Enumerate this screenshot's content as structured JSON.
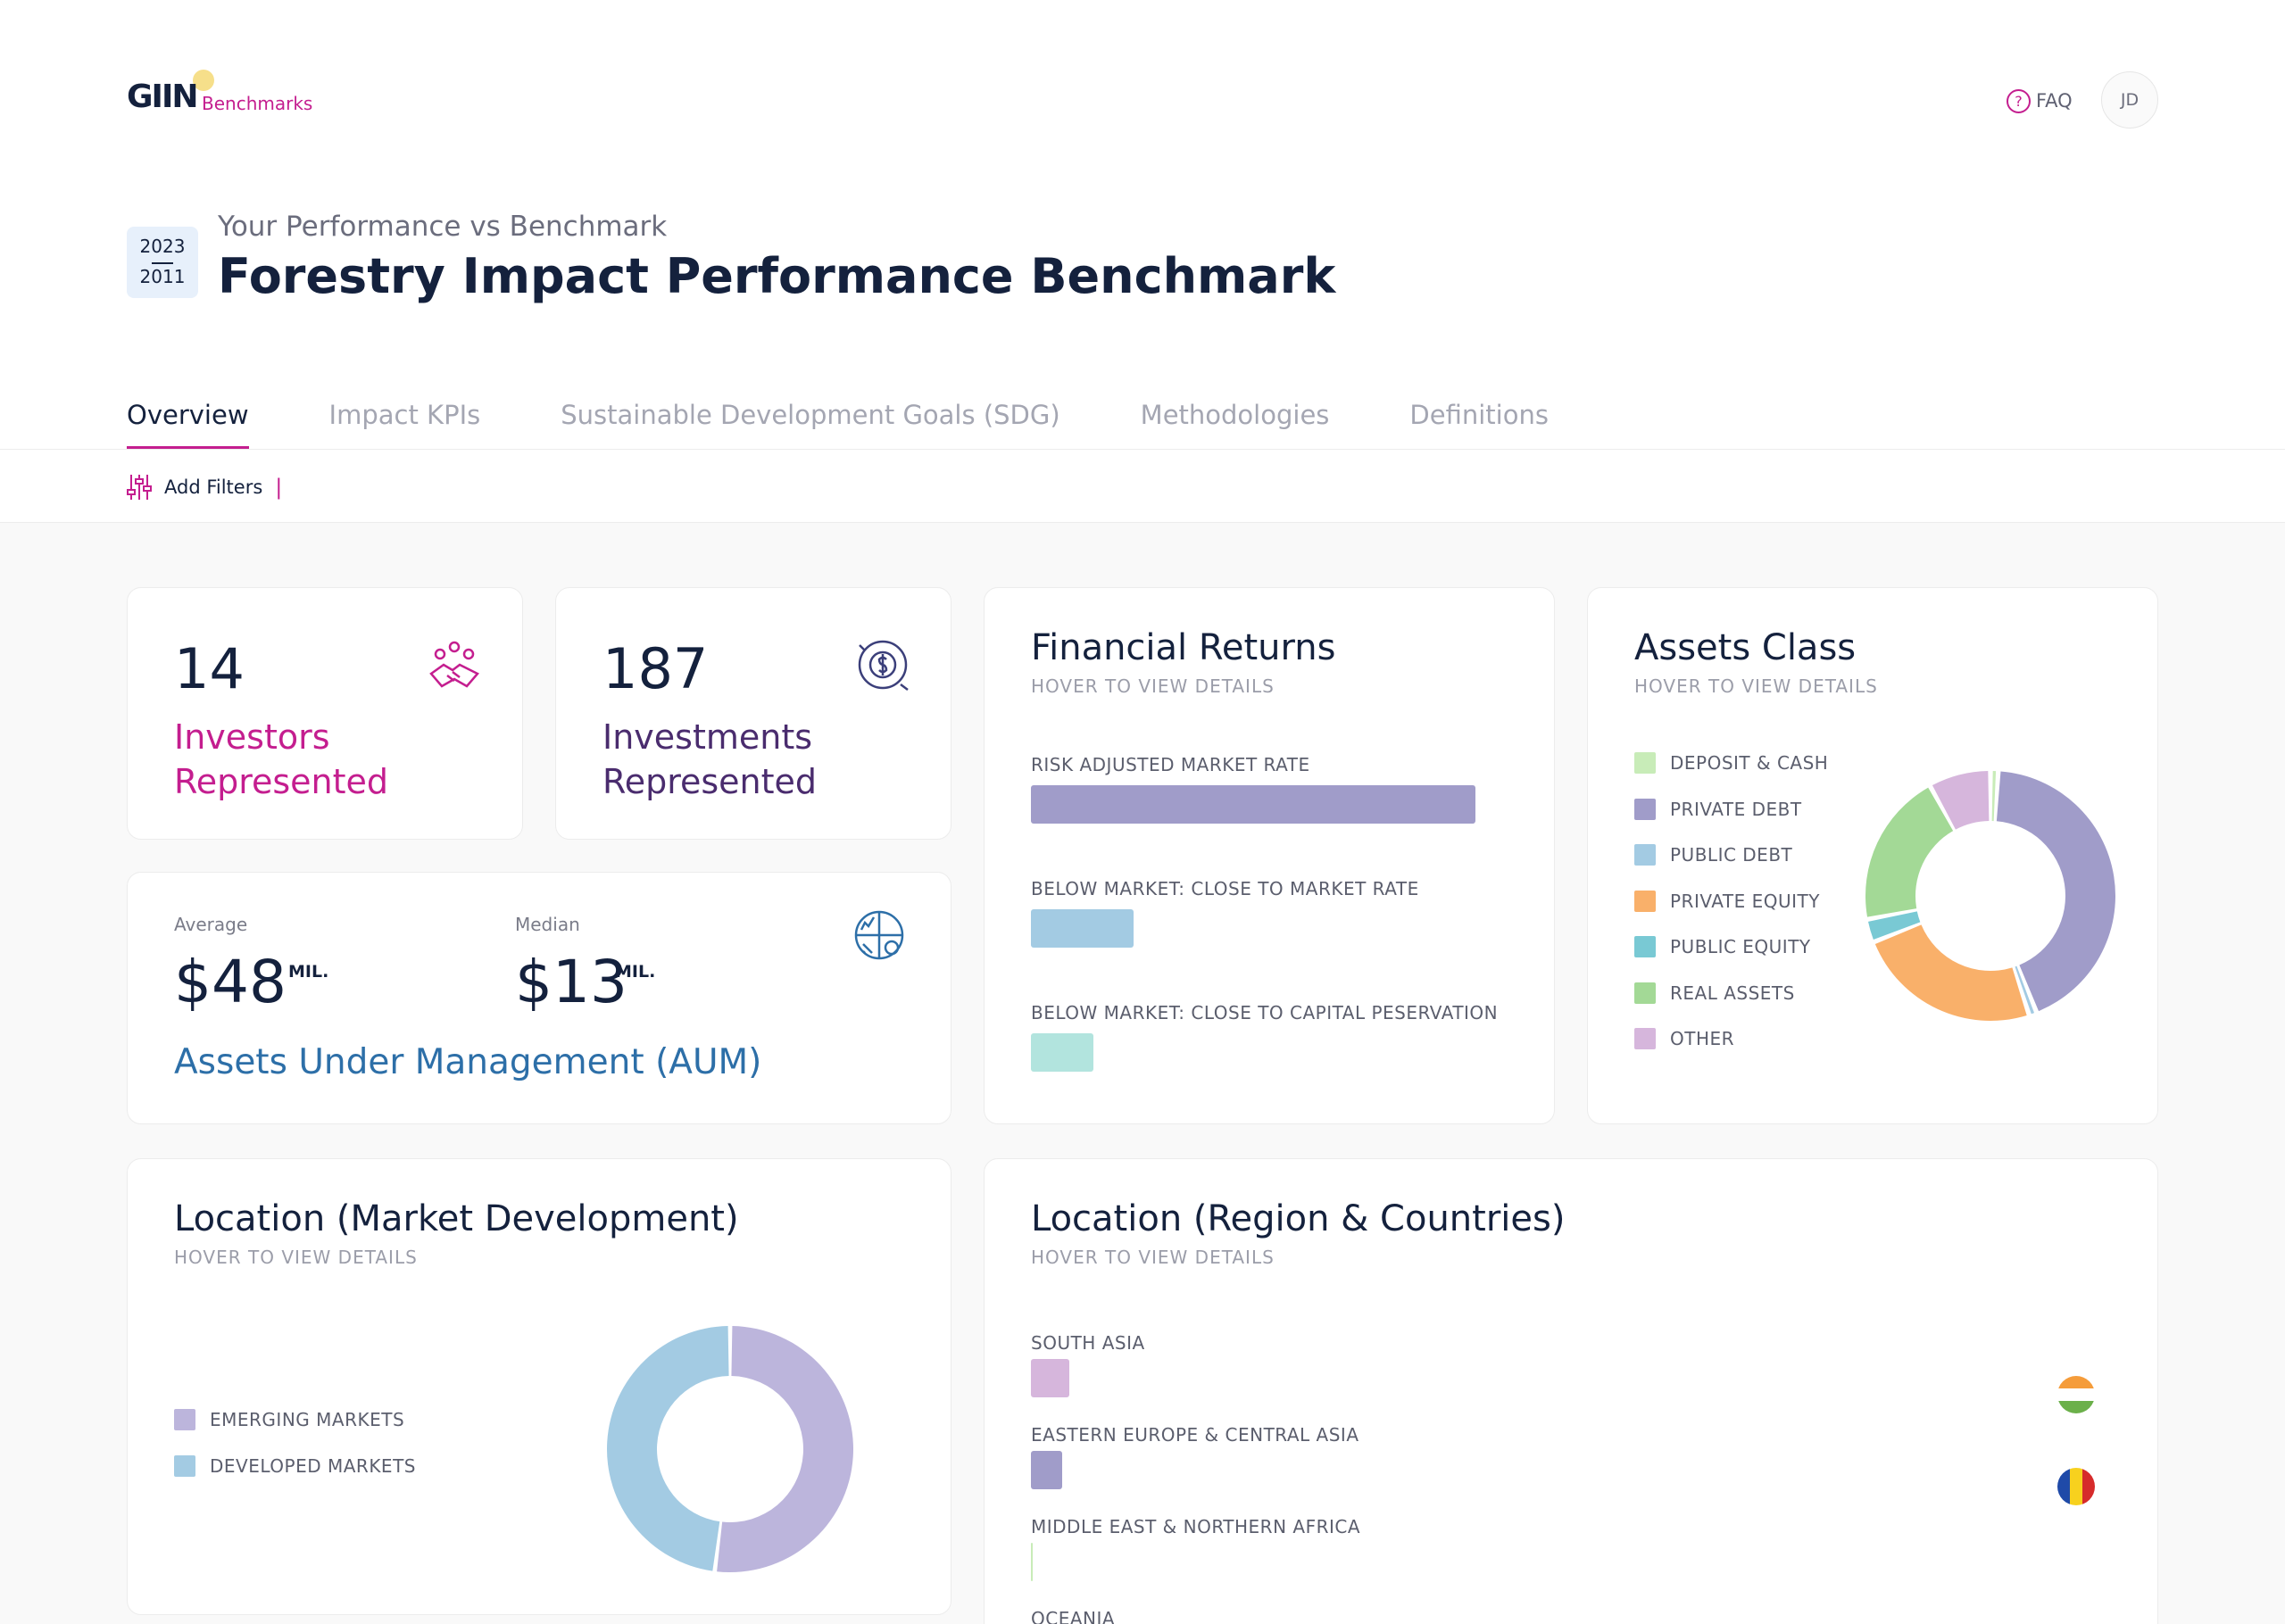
{
  "brand": {
    "logo_main": "GIIN",
    "logo_sub": "Benchmarks"
  },
  "topbar": {
    "faq_label": "FAQ",
    "avatar_initials": "JD"
  },
  "page": {
    "year_top": "2023",
    "year_bottom": "2011",
    "subtitle": "Your Performance vs Benchmark",
    "title": "Forestry Impact Performance Benchmark"
  },
  "tabs": [
    {
      "label": "Overview",
      "active": true
    },
    {
      "label": "Impact KPIs",
      "active": false
    },
    {
      "label": "Sustainable Development Goals (SDG)",
      "active": false
    },
    {
      "label": "Methodologies",
      "active": false
    },
    {
      "label": "Definitions",
      "active": false
    }
  ],
  "filters": {
    "label": "Add Filters",
    "separator": "|"
  },
  "stats": {
    "investors": {
      "value": "14",
      "label_line1": "Investors",
      "label_line2": "Represented",
      "color": "#c41e8f"
    },
    "investments": {
      "value": "187",
      "label_line1": "Investments",
      "label_line2": "Represented",
      "color": "#4a2c6e"
    }
  },
  "aum": {
    "average_caption": "Average",
    "average_value": "$48",
    "median_caption": "Median",
    "median_value": "$13",
    "unit": "MIL.",
    "label": "Assets Under Management (AUM)"
  },
  "financial_returns": {
    "title": "Financial Returns",
    "hint": "HOVER TO VIEW DETAILS",
    "items": [
      {
        "label": "RISK ADJUSTED MARKET RATE",
        "value": 100,
        "color": "#a09cc9"
      },
      {
        "label": "BELOW MARKET: CLOSE TO MARKET RATE",
        "value": 23,
        "color": "#a3cbe3"
      },
      {
        "label": "BELOW MARKET: CLOSE TO CAPITAL  PESERVATION",
        "value": 14,
        "color": "#b2e4de"
      }
    ]
  },
  "assets_class": {
    "title": "Assets Class",
    "hint": "HOVER TO VIEW DETAILS",
    "items": [
      {
        "label": "DEPOSIT & CASH",
        "value": 1,
        "color": "#c8ecb8"
      },
      {
        "label": "PRIVATE DEBT",
        "value": 43,
        "color": "#a09cc9"
      },
      {
        "label": "PUBLIC DEBT",
        "value": 1,
        "color": "#a3cbe3"
      },
      {
        "label": "PRIVATE EQUITY",
        "value": 24,
        "color": "#f9b06a"
      },
      {
        "label": "PUBLIC EQUITY",
        "value": 3,
        "color": "#79c9d4"
      },
      {
        "label": "REAL ASSETS",
        "value": 20,
        "color": "#a3d996"
      },
      {
        "label": "OTHER",
        "value": 8,
        "color": "#d6b6dc"
      }
    ]
  },
  "market_development": {
    "title": "Location (Market Development)",
    "hint": "HOVER TO VIEW DETAILS",
    "items": [
      {
        "label": "EMERGING MARKETS",
        "value": 52,
        "color": "#bcb5dc"
      },
      {
        "label": "DEVELOPED MARKETS",
        "value": 48,
        "color": "#a3cbe3"
      }
    ]
  },
  "regions": {
    "title": "Location (Region & Countries)",
    "hint": "HOVER TO VIEW DETAILS",
    "items": [
      {
        "label": "SOUTH ASIA",
        "value": 43,
        "color": "#d6b6dc"
      },
      {
        "label": "EASTERN EUROPE & CENTRAL ASIA",
        "value": 35,
        "color": "#a09cc9"
      },
      {
        "label": "MIDDLE EAST & NORTHERN AFRICA",
        "value": 2,
        "color": "#c8ecb8"
      },
      {
        "label": "OCEANIA",
        "value": 0,
        "color": "#a3cbe3"
      }
    ],
    "flags": [
      "india-flag",
      "romania-flag"
    ]
  }
}
